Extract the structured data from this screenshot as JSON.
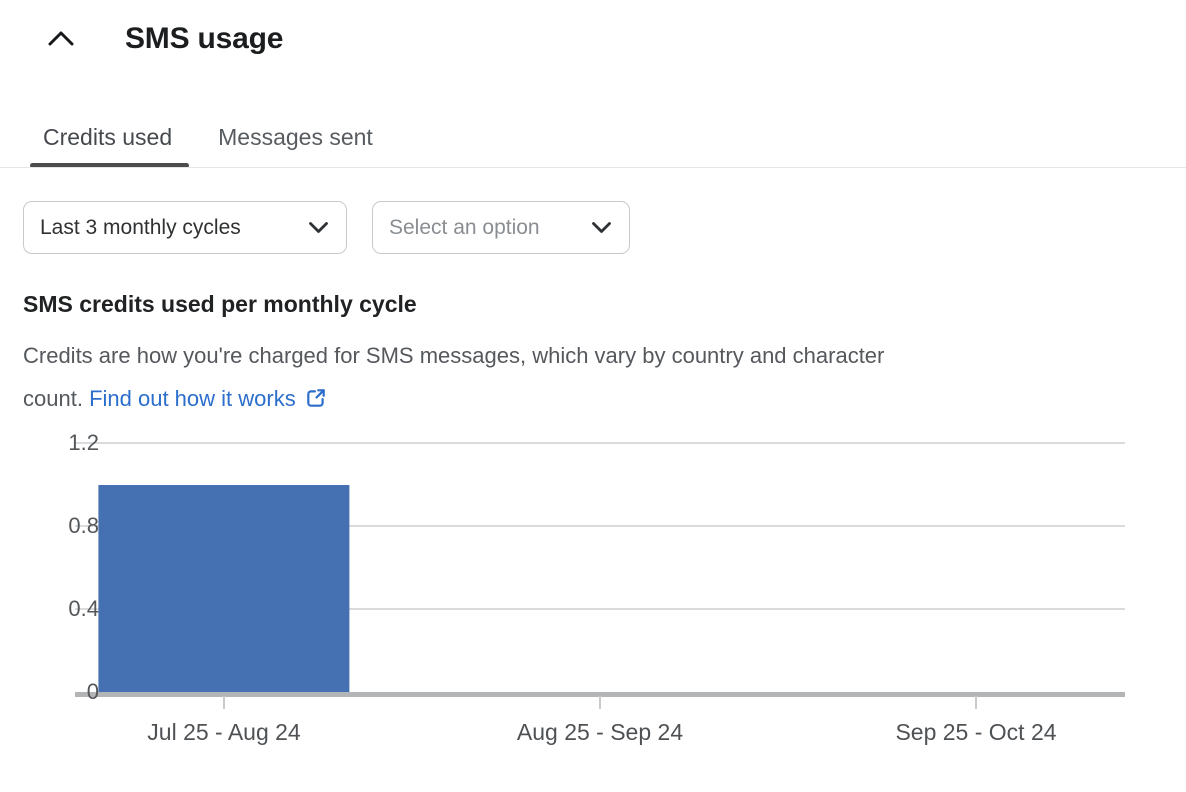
{
  "panel": {
    "title": "SMS usage"
  },
  "tabs": [
    {
      "label": "Credits used",
      "active": true
    },
    {
      "label": "Messages sent",
      "active": false
    }
  ],
  "filters": {
    "cycle_select_value": "Last 3 monthly cycles",
    "option_select_placeholder": "Select an option"
  },
  "section": {
    "heading": "SMS credits used per monthly cycle",
    "description_line1": "Credits are how you're charged for SMS messages, which vary by country and character",
    "description_line2": "count.",
    "link_label": "Find out how it works"
  },
  "colors": {
    "bar_blue": "#4571b2",
    "link_blue": "#2c6ecb",
    "active_tab_underline": "#4c4c4c",
    "gridline_gray": "#d9dbdd",
    "axis_baseline_gray": "#b2b4b6"
  },
  "chart_data": {
    "type": "bar",
    "title": "SMS credits used per monthly cycle",
    "categories": [
      "Jul 25 - Aug 24",
      "Aug 25 - Sep 24",
      "Sep 25 - Oct 24"
    ],
    "values": [
      1,
      0,
      0
    ],
    "xlabel": "",
    "ylabel": "",
    "yticks": [
      0,
      0.4,
      0.8,
      1.2
    ],
    "ylim": [
      0,
      1.2
    ],
    "grid": true,
    "legend": false,
    "bar_color": "#4571b2"
  }
}
